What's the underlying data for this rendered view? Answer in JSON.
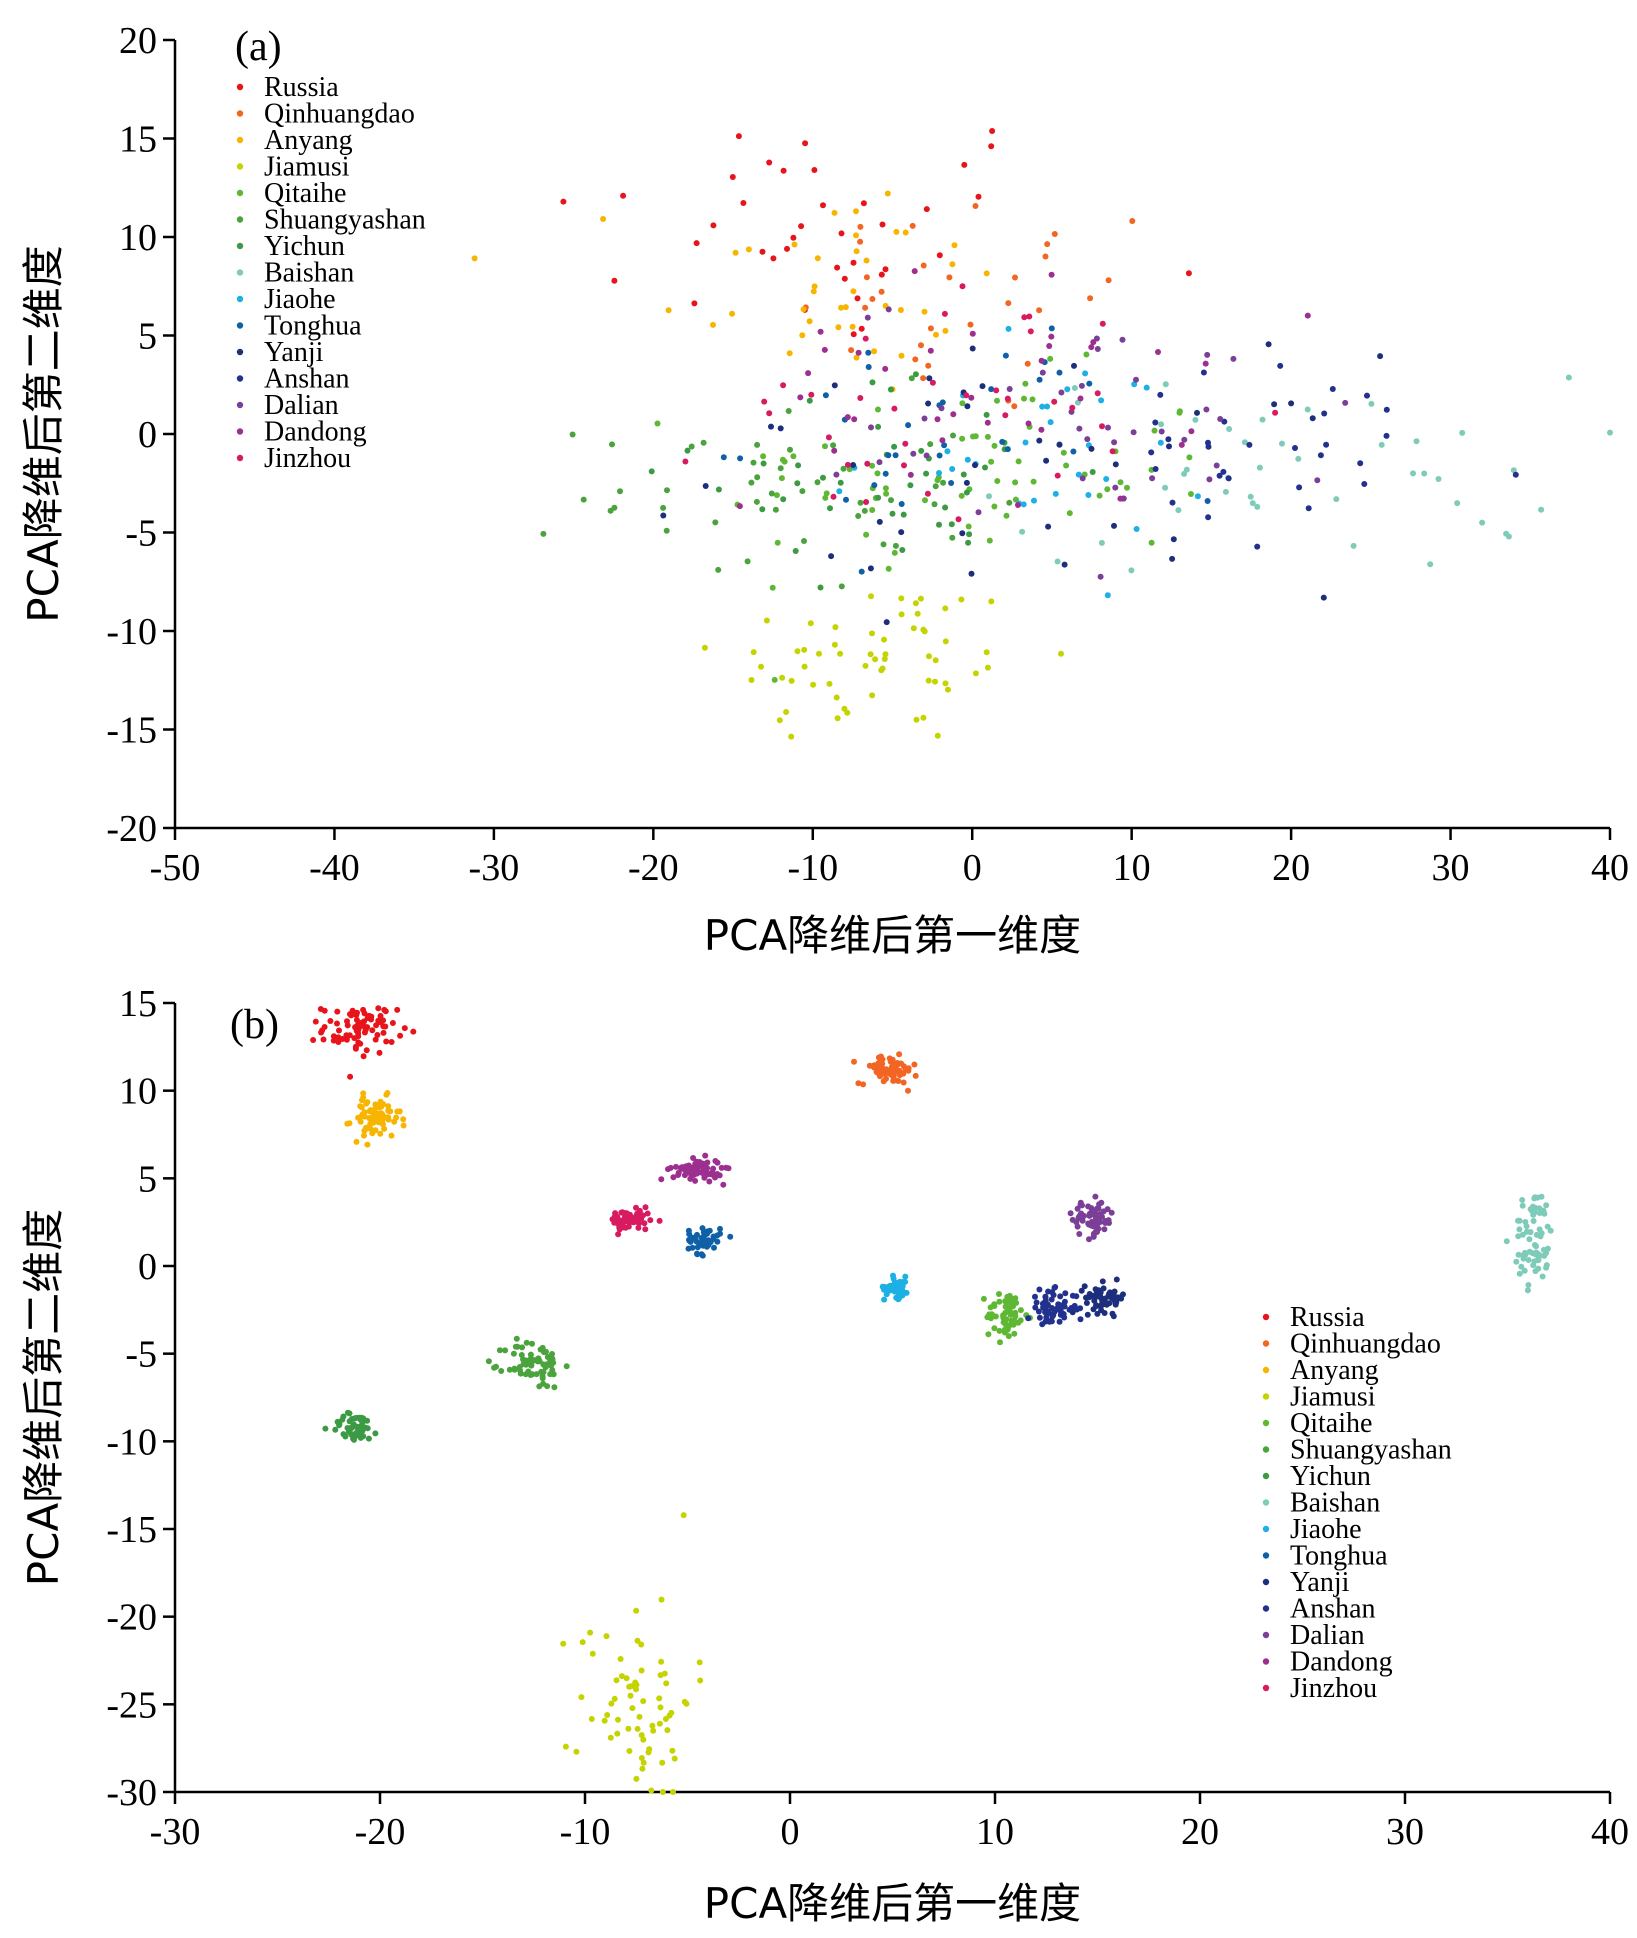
{
  "chart_data": [
    {
      "type": "scatter",
      "panel_label": "(a)",
      "xlabel": "PCA降维后第一维度",
      "ylabel": "PCA降维后第二维度",
      "xlim": [
        -50,
        40
      ],
      "ylim": [
        -20,
        20
      ],
      "xticks": [
        -50,
        -40,
        -30,
        -20,
        -10,
        0,
        10,
        20,
        30,
        40
      ],
      "yticks": [
        -20,
        -15,
        -10,
        -5,
        0,
        5,
        10,
        15,
        20
      ],
      "legend_position": "top-left",
      "series": [
        {
          "name": "Russia",
          "color": "#e8141b",
          "clusters": [
            [
              -10,
              10.5,
              8.5,
              3.2,
              38
            ]
          ]
        },
        {
          "name": "Qinhuangdao",
          "color": "#f26522",
          "clusters": [
            [
              1,
              6.5,
              6,
              3,
              30
            ]
          ]
        },
        {
          "name": "Anyang",
          "color": "#f7b500",
          "clusters": [
            [
              -9,
              7.5,
              5.5,
              3,
              40
            ]
          ]
        },
        {
          "name": "Jiamusi",
          "color": "#c5d300",
          "clusters": [
            [
              -6,
              -11.5,
              5,
              2.2,
              60
            ]
          ]
        },
        {
          "name": "Qitaihe",
          "color": "#5fb834",
          "clusters": [
            [
              0,
              -2,
              8,
              2.5,
              70
            ]
          ]
        },
        {
          "name": "Shuangyashan",
          "color": "#4aa33c",
          "clusters": [
            [
              -12,
              -3,
              6,
              2.5,
              45
            ]
          ]
        },
        {
          "name": "Yichun",
          "color": "#3b9a43",
          "clusters": [
            [
              -5,
              -2,
              6,
              2.5,
              40
            ]
          ]
        },
        {
          "name": "Baishan",
          "color": "#7ecbb9",
          "clusters": [
            [
              20,
              -2,
              9,
              2.5,
              45
            ]
          ]
        },
        {
          "name": "Jiaohe",
          "color": "#1cb0e4",
          "clusters": [
            [
              3,
              -1,
              6,
              2.5,
              30
            ]
          ]
        },
        {
          "name": "Tonghua",
          "color": "#1060a8",
          "clusters": [
            [
              -2,
              0,
              6,
              3,
              30
            ]
          ]
        },
        {
          "name": "Yanji",
          "color": "#1d2f7c",
          "clusters": [
            [
              4,
              -2,
              10,
              3,
              40
            ]
          ]
        },
        {
          "name": "Anshan",
          "color": "#23318e",
          "clusters": [
            [
              20,
              -1.5,
              8,
              2.5,
              30
            ]
          ]
        },
        {
          "name": "Dalian",
          "color": "#7b3f98",
          "clusters": [
            [
              8,
              1,
              8,
              3,
              40
            ]
          ]
        },
        {
          "name": "Dandong",
          "color": "#9c2f8f",
          "clusters": [
            [
              0,
              2,
              7,
              3,
              35
            ]
          ]
        },
        {
          "name": "Jinzhou",
          "color": "#d81b60",
          "clusters": [
            [
              -2,
              1.5,
              7,
              3,
              35
            ]
          ]
        }
      ]
    },
    {
      "type": "scatter",
      "panel_label": "(b)",
      "xlabel": "PCA降维后第一维度",
      "ylabel": "PCA降维后第二维度",
      "xlim": [
        -30,
        40
      ],
      "ylim": [
        -30,
        15
      ],
      "xticks": [
        -30,
        -20,
        -10,
        0,
        10,
        20,
        30,
        40
      ],
      "yticks": [
        -30,
        -25,
        -20,
        -15,
        -10,
        -5,
        0,
        5,
        10,
        15
      ],
      "legend_position": "right-middle",
      "series": [
        {
          "name": "Russia",
          "color": "#e8141b",
          "clusters": [
            [
              -21,
              13.5,
              0.9,
              0.7,
              80
            ]
          ]
        },
        {
          "name": "Qinhuangdao",
          "color": "#f26522",
          "clusters": [
            [
              4.8,
              11.2,
              0.7,
              0.4,
              70
            ]
          ]
        },
        {
          "name": "Anyang",
          "color": "#f7b500",
          "clusters": [
            [
              -20.2,
              8.4,
              0.6,
              0.6,
              70
            ]
          ]
        },
        {
          "name": "Jiamusi",
          "color": "#c5d300",
          "clusters": [
            [
              -7.5,
              -24.5,
              1.4,
              3.0,
              70
            ]
          ]
        },
        {
          "name": "Qitaihe",
          "color": "#5fb834",
          "clusters": [
            [
              10.6,
              -2.8,
              0.5,
              0.7,
              60
            ]
          ]
        },
        {
          "name": "Shuangyashan",
          "color": "#4aa33c",
          "clusters": [
            [
              -12.5,
              -5.6,
              0.7,
              0.7,
              70
            ]
          ]
        },
        {
          "name": "Yichun",
          "color": "#3b9a43",
          "clusters": [
            [
              -21.2,
              -9.2,
              0.6,
              0.4,
              50
            ]
          ]
        },
        {
          "name": "Baishan",
          "color": "#7ecbb9",
          "clusters": [
            [
              36.3,
              1.6,
              0.5,
              1.4,
              70
            ]
          ]
        },
        {
          "name": "Jiaohe",
          "color": "#1cb0e4",
          "clusters": [
            [
              5.2,
              -1.2,
              0.3,
              0.3,
              50
            ]
          ]
        },
        {
          "name": "Tonghua",
          "color": "#1060a8",
          "clusters": [
            [
              -4.2,
              1.5,
              0.4,
              0.4,
              50
            ]
          ]
        },
        {
          "name": "Yanji",
          "color": "#1d2f7c",
          "clusters": [
            [
              15.4,
              -1.8,
              0.5,
              0.4,
              60
            ]
          ]
        },
        {
          "name": "Anshan",
          "color": "#23318e",
          "clusters": [
            [
              12.8,
              -2.4,
              0.6,
              0.5,
              70
            ]
          ]
        },
        {
          "name": "Dalian",
          "color": "#7b3f98",
          "clusters": [
            [
              14.8,
              2.7,
              0.5,
              0.5,
              70
            ]
          ]
        },
        {
          "name": "Dandong",
          "color": "#9c2f8f",
          "clusters": [
            [
              -4.5,
              5.5,
              0.6,
              0.3,
              80
            ]
          ]
        },
        {
          "name": "Jinzhou",
          "color": "#d81b60",
          "clusters": [
            [
              -7.8,
              2.6,
              0.5,
              0.3,
              70
            ]
          ]
        }
      ]
    }
  ]
}
